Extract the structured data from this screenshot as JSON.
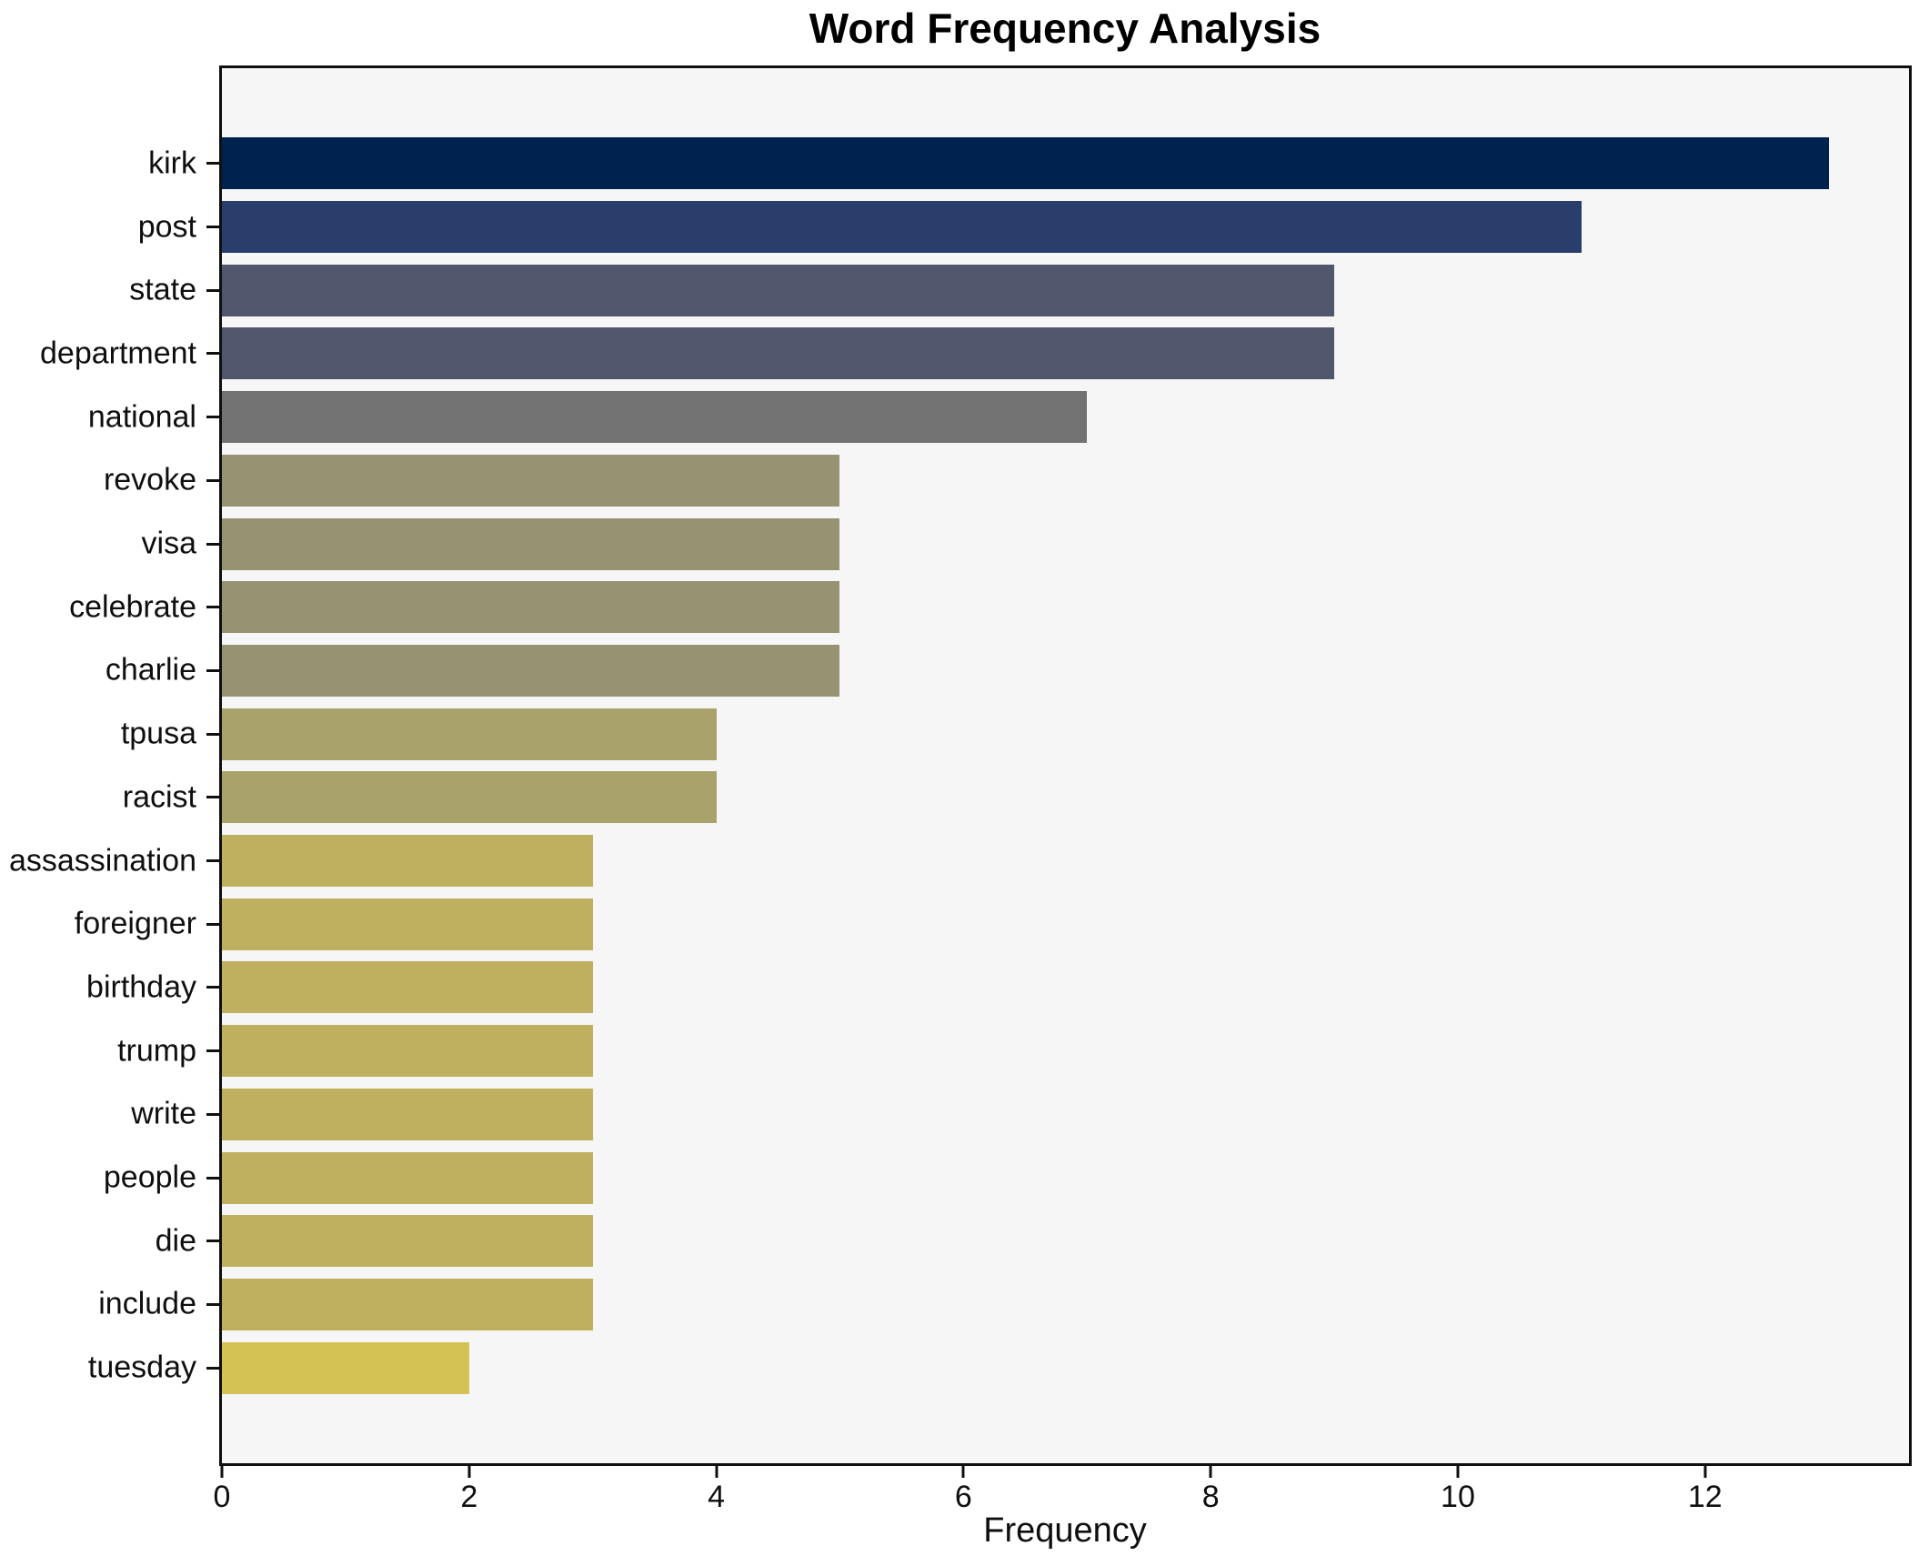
{
  "chart_data": {
    "type": "bar",
    "orientation": "horizontal",
    "title": "Word Frequency Analysis",
    "xlabel": "Frequency",
    "ylabel": "",
    "categories": [
      "kirk",
      "post",
      "state",
      "department",
      "national",
      "revoke",
      "visa",
      "celebrate",
      "charlie",
      "tpusa",
      "racist",
      "assassination",
      "foreigner",
      "birthday",
      "trump",
      "write",
      "people",
      "die",
      "include",
      "tuesday"
    ],
    "values": [
      13,
      11,
      9,
      9,
      7,
      5,
      5,
      5,
      5,
      4,
      4,
      3,
      3,
      3,
      3,
      3,
      3,
      3,
      3,
      2
    ],
    "bar_colors": [
      "#00224e",
      "#2a3e6c",
      "#50566c",
      "#50566c",
      "#727273",
      "#959372",
      "#959372",
      "#959372",
      "#959372",
      "#aaa26b",
      "#aaa26b",
      "#bfb05f",
      "#bfb05f",
      "#bfb05f",
      "#bfb05f",
      "#bfb05f",
      "#bfb05f",
      "#bfb05f",
      "#bfb05f",
      "#d5c254"
    ],
    "xlim": [
      0,
      13.65
    ],
    "xticks": [
      0,
      2,
      4,
      6,
      8,
      10,
      12
    ],
    "grid": false,
    "legend": "none",
    "plot_background": "#f6f6f7",
    "figure_background": "#ffffff",
    "spine_color": "#0f0f0f"
  }
}
